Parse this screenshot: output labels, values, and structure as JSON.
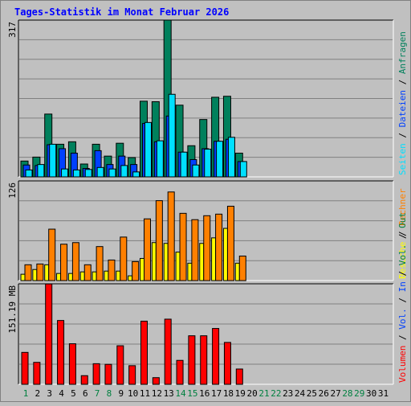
{
  "header": {
    "title": "Tages-Statistik im Monat Februar 2026"
  },
  "colors": {
    "background": "#c0c0c0",
    "title": "#0000ff",
    "weekday": "#000000",
    "weekend": "#008040",
    "hits": "#00805c",
    "files": "#0040ff",
    "pages": "#00e0ff",
    "visits": "#ffff00",
    "sites": "#ff8000",
    "volume_in": "#ff0000"
  },
  "chart_data": [
    {
      "type": "bar",
      "name": "top",
      "ylabel": "317",
      "ylim": [
        0,
        317
      ],
      "right_labels": [
        {
          "text": "Anfragen",
          "color": "#00805c"
        },
        {
          "text": "Dateien",
          "color": "#0040ff"
        },
        {
          "text": "Seiten",
          "color": "#00e0ff"
        }
      ],
      "categories": [
        "1",
        "2",
        "3",
        "4",
        "5",
        "6",
        "7",
        "8",
        "9",
        "10",
        "11",
        "12",
        "13",
        "14",
        "15",
        "16",
        "17",
        "18",
        "19",
        "20",
        "21",
        "22",
        "23",
        "24",
        "25",
        "26",
        "27",
        "28",
        "29",
        "30",
        "31"
      ],
      "weekend_days": [
        "1",
        "7",
        "8",
        "14",
        "15",
        "21",
        "22",
        "28",
        "29"
      ],
      "series": [
        {
          "name": "Anfragen",
          "color": "#00805c",
          "values": [
            32,
            40,
            127,
            66,
            71,
            26,
            66,
            42,
            68,
            39,
            153,
            152,
            317,
            145,
            63,
            116,
            161,
            163,
            48,
            null,
            null,
            null,
            null,
            null,
            null,
            null,
            null,
            null,
            null,
            null,
            null
          ]
        },
        {
          "name": "Dateien",
          "color": "#0040ff",
          "values": [
            24,
            23,
            65,
            57,
            48,
            17,
            53,
            25,
            42,
            25,
            108,
            71,
            123,
            50,
            35,
            57,
            72,
            76,
            31,
            null,
            null,
            null,
            null,
            null,
            null,
            null,
            null,
            null,
            null,
            null,
            null
          ]
        },
        {
          "name": "Seiten",
          "color": "#00e0ff",
          "values": [
            14,
            25,
            66,
            16,
            14,
            15,
            19,
            16,
            23,
            10,
            110,
            73,
            167,
            50,
            24,
            56,
            72,
            80,
            31,
            null,
            null,
            null,
            null,
            null,
            null,
            null,
            null,
            null,
            null,
            null,
            null
          ]
        }
      ]
    },
    {
      "type": "bar",
      "name": "middle",
      "ylabel": "126",
      "ylim": [
        0,
        126
      ],
      "right_labels": [
        {
          "text": "Rechner",
          "color": "#ff8000"
        },
        {
          "text": "Besuche",
          "color": "#ffff00"
        }
      ],
      "categories": [
        "1",
        "2",
        "3",
        "4",
        "5",
        "6",
        "7",
        "8",
        "9",
        "10",
        "11",
        "12",
        "13",
        "14",
        "15",
        "16",
        "17",
        "18",
        "19",
        "20",
        "21",
        "22",
        "23",
        "24",
        "25",
        "26",
        "27",
        "28",
        "29",
        "30",
        "31"
      ],
      "series": [
        {
          "name": "Besuche",
          "color": "#ffff00",
          "values": [
            8,
            14,
            20,
            9,
            9,
            11,
            11,
            12,
            12,
            6,
            28,
            48,
            47,
            36,
            22,
            47,
            54,
            66,
            22,
            null,
            null,
            null,
            null,
            null,
            null,
            null,
            null,
            null,
            null,
            null,
            null
          ]
        },
        {
          "name": "Rechner",
          "color": "#ff8000",
          "values": [
            20,
            21,
            65,
            46,
            48,
            20,
            43,
            26,
            55,
            24,
            78,
            101,
            112,
            85,
            77,
            82,
            84,
            94,
            31,
            null,
            null,
            null,
            null,
            null,
            null,
            null,
            null,
            null,
            null,
            null,
            null
          ]
        }
      ]
    },
    {
      "type": "bar",
      "name": "bottom",
      "ylabel": "151.19 MB",
      "ylim": [
        0,
        151.19
      ],
      "right_labels": [
        {
          "text": "Out",
          "color": "#008040"
        },
        {
          "text": "Vol.",
          "color": "#008040"
        },
        {
          "text": "/",
          "color": "#000000"
        },
        {
          "text": "In",
          "color": "#0040ff"
        },
        {
          "text": "Vol.",
          "color": "#0040ff"
        },
        {
          "text": "/",
          "color": "#000000"
        },
        {
          "text": "Volumen",
          "color": "#ff0000"
        }
      ],
      "categories": [
        "1",
        "2",
        "3",
        "4",
        "5",
        "6",
        "7",
        "8",
        "9",
        "10",
        "11",
        "12",
        "13",
        "14",
        "15",
        "16",
        "17",
        "18",
        "19",
        "20",
        "21",
        "22",
        "23",
        "24",
        "25",
        "26",
        "27",
        "28",
        "29",
        "30",
        "31"
      ],
      "series": [
        {
          "name": "Volumen",
          "color": "#ff0000",
          "values": [
            48,
            33,
            151,
            96,
            61,
            13,
            31,
            30,
            58,
            28,
            95,
            10,
            98,
            36,
            73,
            73,
            84,
            63,
            23,
            null,
            null,
            null,
            null,
            null,
            null,
            null,
            null,
            null,
            null,
            null,
            null
          ]
        }
      ]
    }
  ]
}
